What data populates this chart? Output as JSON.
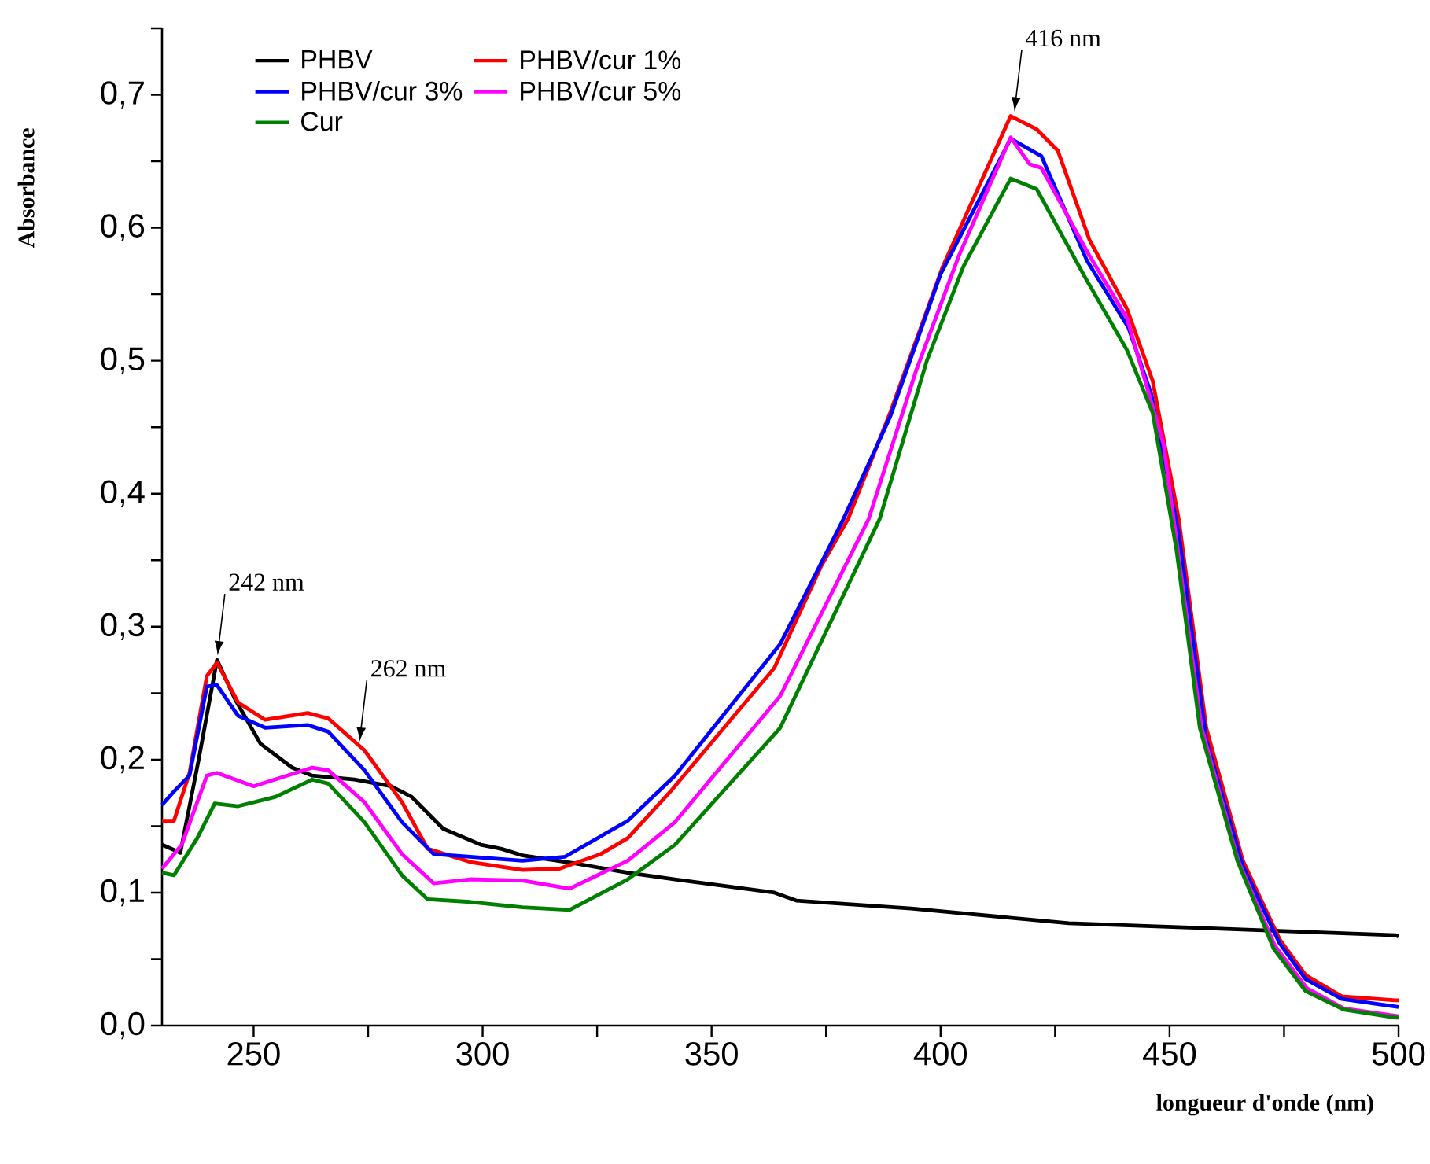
{
  "chart_data": {
    "type": "line",
    "xlabel": "longueur d'onde (nm)",
    "ylabel": "Absorbance",
    "xlim": [
      230,
      500
    ],
    "ylim": [
      0,
      0.75
    ],
    "xticks": [
      250,
      {
        "value": 275,
        "label": null
      },
      300,
      {
        "value": 325,
        "label": null
      },
      350,
      {
        "value": 375,
        "label": null
      },
      400,
      {
        "value": 425,
        "label": null
      },
      450,
      {
        "value": 475,
        "label": null
      },
      500
    ],
    "yticks": [
      {
        "value": 0,
        "label": "0,0"
      },
      {
        "value": 0.05,
        "label": null
      },
      {
        "value": 0.1,
        "label": "0,1"
      },
      {
        "value": 0.15,
        "label": null
      },
      {
        "value": 0.2,
        "label": "0,2"
      },
      {
        "value": 0.25,
        "label": null
      },
      {
        "value": 0.3,
        "label": "0,3"
      },
      {
        "value": 0.35,
        "label": null
      },
      {
        "value": 0.4,
        "label": "0,4"
      },
      {
        "value": 0.45,
        "label": null
      },
      {
        "value": 0.5,
        "label": "0,5"
      },
      {
        "value": 0.55,
        "label": null
      },
      {
        "value": 0.6,
        "label": "0,6"
      },
      {
        "value": 0.65,
        "label": null
      },
      {
        "value": 0.7,
        "label": "0,7"
      },
      {
        "value": 0.75,
        "label": null
      }
    ],
    "grid": false,
    "legend": "top left",
    "marker": "none",
    "line_style": "solid",
    "annotations": [
      {
        "text": "242 nm",
        "x": 242,
        "y": 0.275
      },
      {
        "text": "262 nm",
        "x": 273,
        "y": 0.21
      },
      {
        "text": "416 nm",
        "x": 416,
        "y": 0.684
      }
    ],
    "series": [
      {
        "name": "PHBV",
        "color": "#000000",
        "x": [
          230,
          234,
          238,
          242,
          246,
          251.5,
          258.4,
          262.8,
          272,
          280,
          284.5,
          291.4,
          299.6,
          304,
          308.7,
          320,
          331.7,
          342,
          363.7,
          368.5,
          393.6,
          428,
          460,
          499.3,
          500
        ],
        "values": [
          0.136,
          0.13,
          0.2,
          0.275,
          0.245,
          0.212,
          0.194,
          0.188,
          0.185,
          0.18,
          0.172,
          0.148,
          0.136,
          0.133,
          0.128,
          0.122,
          0.115,
          0.11,
          0.1,
          0.094,
          0.088,
          0.077,
          0.073,
          0.068,
          0.067
        ]
      },
      {
        "name": "PHBV/cur 1%",
        "color": "#ff0000",
        "x": [
          230,
          232.6,
          236,
          239.8,
          242,
          246.6,
          252.5,
          261.8,
          266.3,
          274.2,
          282.4,
          288,
          297.3,
          308.7,
          316.8,
          325.8,
          331.7,
          341,
          363.7,
          374,
          379.8,
          389,
          400.5,
          415.3,
          421,
          425.6,
          432.5,
          440.7,
          446.3,
          452,
          458,
          466,
          474,
          479.7,
          487.6,
          499.3,
          500
        ],
        "values": [
          0.154,
          0.154,
          0.19,
          0.263,
          0.273,
          0.243,
          0.23,
          0.235,
          0.231,
          0.207,
          0.168,
          0.133,
          0.123,
          0.117,
          0.118,
          0.129,
          0.141,
          0.176,
          0.269,
          0.346,
          0.381,
          0.461,
          0.571,
          0.684,
          0.674,
          0.658,
          0.591,
          0.539,
          0.485,
          0.381,
          0.224,
          0.124,
          0.065,
          0.038,
          0.022,
          0.019,
          0.019
        ]
      },
      {
        "name": "PHBV/cur 3%",
        "color": "#0000ff",
        "x": [
          230,
          232.6,
          236,
          239.8,
          242,
          246.6,
          252.5,
          261.8,
          266.3,
          274.2,
          282.4,
          289.3,
          308.7,
          318,
          331.7,
          342,
          365,
          378.8,
          389,
          400,
          415.3,
          422,
          432,
          441,
          446,
          452,
          458,
          466,
          474,
          479.7,
          487.6,
          500
        ],
        "values": [
          0.166,
          0.176,
          0.188,
          0.255,
          0.256,
          0.233,
          0.224,
          0.226,
          0.221,
          0.192,
          0.153,
          0.129,
          0.124,
          0.127,
          0.154,
          0.188,
          0.287,
          0.381,
          0.458,
          0.565,
          0.667,
          0.654,
          0.575,
          0.525,
          0.475,
          0.37,
          0.215,
          0.12,
          0.062,
          0.035,
          0.02,
          0.014
        ]
      },
      {
        "name": "PHBV/cur 5%",
        "color": "#ff00ff",
        "x": [
          230,
          234.3,
          239.8,
          242,
          250,
          262.8,
          266.3,
          274.2,
          282.4,
          289.3,
          297.3,
          308.7,
          319,
          331.7,
          342,
          365,
          384.3,
          394.6,
          404,
          415.3,
          419.4,
          422,
          432.5,
          440.7,
          448.7,
          457,
          465,
          473,
          480,
          488,
          500
        ],
        "values": [
          0.118,
          0.136,
          0.188,
          0.19,
          0.18,
          0.194,
          0.192,
          0.168,
          0.129,
          0.107,
          0.11,
          0.109,
          0.103,
          0.124,
          0.153,
          0.248,
          0.381,
          0.492,
          0.579,
          0.668,
          0.648,
          0.645,
          0.579,
          0.532,
          0.437,
          0.224,
          0.124,
          0.06,
          0.028,
          0.013,
          0.007
        ]
      },
      {
        "name": "Cur",
        "color": "#008000",
        "x": [
          230,
          232.6,
          237.7,
          241.5,
          246.6,
          254.8,
          262.8,
          266.3,
          274.2,
          282.4,
          288,
          297.3,
          308.7,
          319,
          331.7,
          342,
          365,
          386.7,
          397,
          405,
          415.3,
          421,
          431.5,
          440.7,
          446.3,
          451.5,
          456.6,
          464.8,
          472.7,
          479.7,
          488,
          499.3,
          500
        ],
        "values": [
          0.115,
          0.113,
          0.141,
          0.167,
          0.165,
          0.172,
          0.185,
          0.182,
          0.153,
          0.113,
          0.095,
          0.093,
          0.089,
          0.087,
          0.11,
          0.136,
          0.224,
          0.381,
          0.5,
          0.571,
          0.637,
          0.629,
          0.563,
          0.508,
          0.461,
          0.358,
          0.224,
          0.124,
          0.058,
          0.026,
          0.012,
          0.006,
          0.006
        ]
      }
    ]
  }
}
